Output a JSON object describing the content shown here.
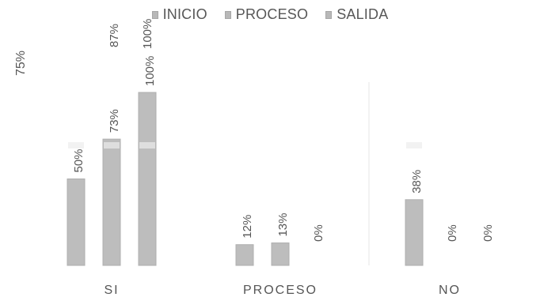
{
  "legend": {
    "items": [
      {
        "label": "INICIO",
        "color": "#bdbdbd"
      },
      {
        "label": "PROCESO",
        "color": "#bdbdbd"
      },
      {
        "label": "SALIDA",
        "color": "#bdbdbd"
      }
    ]
  },
  "side_note": "75%",
  "chart_data": {
    "type": "bar",
    "categories": [
      "SI",
      "PROCESO",
      "NO"
    ],
    "series": [
      {
        "name": "INICIO",
        "values": [
          50,
          12,
          38
        ],
        "labels": [
          "50%",
          "12%",
          "38%"
        ]
      },
      {
        "name": "PROCESO",
        "values": [
          73,
          13,
          0
        ],
        "labels": [
          "73%",
          "13%",
          "0%"
        ]
      },
      {
        "name": "SALIDA",
        "values": [
          100,
          0,
          0
        ],
        "labels": [
          "100%",
          "0%",
          "0%"
        ]
      }
    ],
    "extra_labels": {
      "SI": [
        "87%",
        "100%"
      ]
    },
    "title": "",
    "xlabel": "",
    "ylabel": "",
    "ylim": [
      0,
      100
    ],
    "grid": false,
    "legend_position": "top-center",
    "colors": {
      "bar": "#bdbdbd",
      "text": "#555555"
    }
  }
}
